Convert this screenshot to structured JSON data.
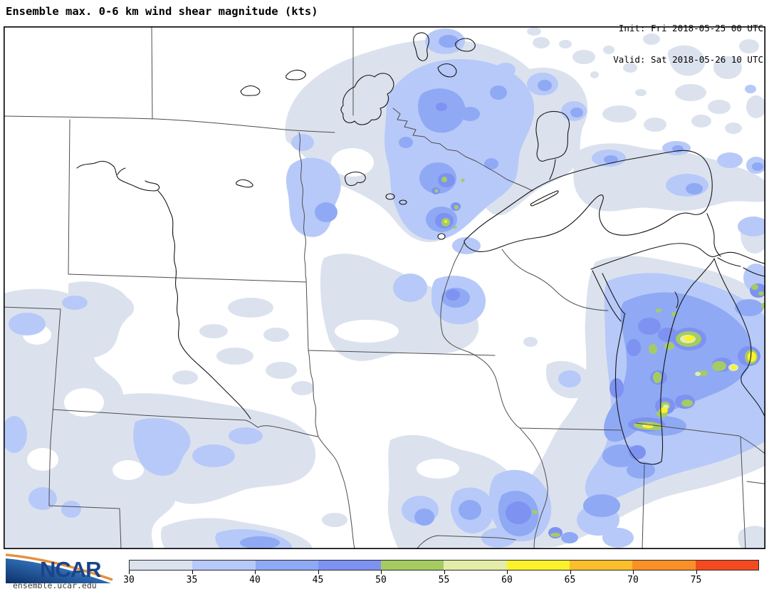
{
  "header": {
    "title": "Ensemble max. 0-6 km wind shear magnitude (kts)",
    "init_line": "Init: Fri 2018-05-25 00 UTC",
    "valid_line": "Valid: Sat 2018-05-26 10 UTC"
  },
  "footer": {
    "brand": "NCAR",
    "url": "ensemble.ucar.edu"
  },
  "colorbar": {
    "units": "kts",
    "ticks": [
      "30",
      "35",
      "40",
      "45",
      "50",
      "55",
      "60",
      "65",
      "70",
      "75"
    ],
    "segment_colors": [
      "#dbe2ee",
      "#b7c9f8",
      "#8fa9f4",
      "#7e92f2",
      "#a5cc63",
      "#e3eda8",
      "#fbf22c",
      "#fdbe2b",
      "#fb9126",
      "#f54a1f"
    ]
  },
  "map_colors": {
    "shade_30": "#dbe2ee",
    "shade_35": "#b7c9f8",
    "shade_40": "#8fa9f4",
    "shade_45": "#7e92f2",
    "shade_50": "#a5cc63",
    "shade_55": "#e3eda8",
    "shade_60": "#fbf22c",
    "border_line": "#4d4d4d",
    "lake_line": "#161616"
  }
}
